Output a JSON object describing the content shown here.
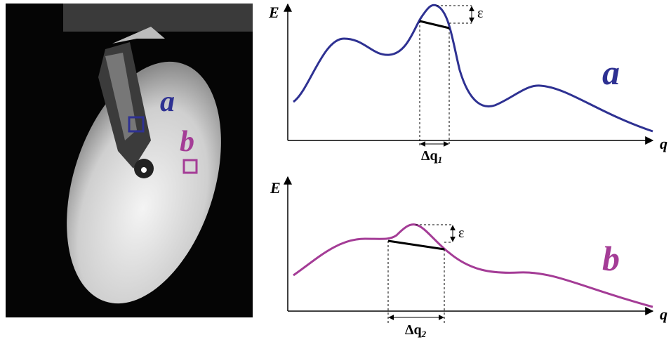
{
  "photo": {
    "label_a": "a",
    "label_b": "b"
  },
  "panel_a": {
    "y_axis": "E",
    "x_axis": "q",
    "epsilon": "ε",
    "delta_q": "Δq",
    "delta_sub": "1",
    "label": "a"
  },
  "panel_b": {
    "y_axis": "E",
    "x_axis": "q",
    "epsilon": "ε",
    "delta_q": "Δq",
    "delta_sub": "2",
    "label": "b"
  }
}
